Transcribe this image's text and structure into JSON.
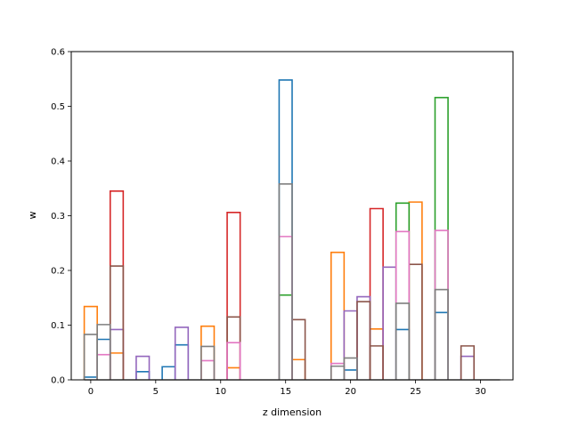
{
  "chart_data": {
    "type": "bar",
    "style": "step-outline histogram bars",
    "xlabel": "z dimension",
    "ylabel": "w",
    "xlim": [
      -1.5,
      32.5
    ],
    "ylim": [
      0,
      0.6
    ],
    "xticks": [
      0,
      5,
      10,
      15,
      20,
      25,
      30
    ],
    "yticks": [
      0.0,
      0.1,
      0.2,
      0.3,
      0.4,
      0.5,
      0.6
    ],
    "grid": false,
    "series": [
      {
        "color": "#1f77b4",
        "values": [
          {
            "x": 0,
            "w": 0.005
          },
          {
            "x": 1,
            "w": 0.074
          },
          {
            "x": 4,
            "w": 0.015
          },
          {
            "x": 6,
            "w": 0.024
          },
          {
            "x": 7,
            "w": 0.064
          },
          {
            "x": 15,
            "w": 0.548
          },
          {
            "x": 20,
            "w": 0.018
          },
          {
            "x": 24,
            "w": 0.092
          },
          {
            "x": 27,
            "w": 0.123
          }
        ]
      },
      {
        "color": "#ff7f0e",
        "values": [
          {
            "x": 0,
            "w": 0.134
          },
          {
            "x": 2,
            "w": 0.049
          },
          {
            "x": 9,
            "w": 0.098
          },
          {
            "x": 11,
            "w": 0.022
          },
          {
            "x": 16,
            "w": 0.037
          },
          {
            "x": 19,
            "w": 0.233
          },
          {
            "x": 22,
            "w": 0.093
          },
          {
            "x": 25,
            "w": 0.325
          }
        ]
      },
      {
        "color": "#2ca02c",
        "values": [
          {
            "x": 15,
            "w": 0.155
          },
          {
            "x": 24,
            "w": 0.323
          },
          {
            "x": 27,
            "w": 0.516
          }
        ]
      },
      {
        "color": "#d62728",
        "values": [
          {
            "x": 2,
            "w": 0.345
          },
          {
            "x": 11,
            "w": 0.306
          },
          {
            "x": 22,
            "w": 0.313
          }
        ]
      },
      {
        "color": "#9467bd",
        "values": [
          {
            "x": 2,
            "w": 0.092
          },
          {
            "x": 4,
            "w": 0.043
          },
          {
            "x": 7,
            "w": 0.096
          },
          {
            "x": 20,
            "w": 0.126
          },
          {
            "x": 21,
            "w": 0.152
          },
          {
            "x": 23,
            "w": 0.206
          },
          {
            "x": 29,
            "w": 0.043
          }
        ]
      },
      {
        "color": "#8c564b",
        "values": [
          {
            "x": 2,
            "w": 0.208
          },
          {
            "x": 11,
            "w": 0.115
          },
          {
            "x": 16,
            "w": 0.11
          },
          {
            "x": 21,
            "w": 0.143
          },
          {
            "x": 22,
            "w": 0.062
          },
          {
            "x": 25,
            "w": 0.211
          },
          {
            "x": 29,
            "w": 0.062
          }
        ]
      },
      {
        "color": "#e377c2",
        "values": [
          {
            "x": 1,
            "w": 0.046
          },
          {
            "x": 9,
            "w": 0.035
          },
          {
            "x": 11,
            "w": 0.068
          },
          {
            "x": 15,
            "w": 0.262
          },
          {
            "x": 19,
            "w": 0.03
          },
          {
            "x": 24,
            "w": 0.271
          },
          {
            "x": 27,
            "w": 0.273
          }
        ]
      },
      {
        "color": "#7f7f7f",
        "values": [
          {
            "x": 0,
            "w": 0.083
          },
          {
            "x": 1,
            "w": 0.101
          },
          {
            "x": 9,
            "w": 0.061
          },
          {
            "x": 15,
            "w": 0.358
          },
          {
            "x": 19,
            "w": 0.025
          },
          {
            "x": 20,
            "w": 0.04
          },
          {
            "x": 24,
            "w": 0.14
          },
          {
            "x": 27,
            "w": 0.165
          }
        ]
      }
    ]
  }
}
